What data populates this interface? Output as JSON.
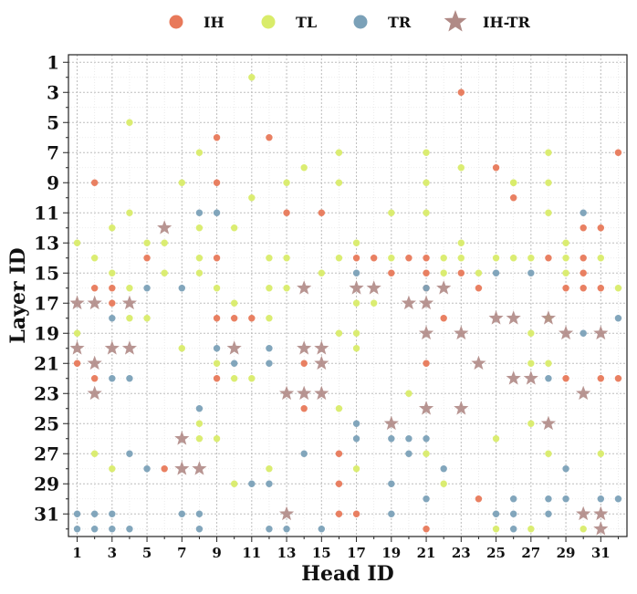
{
  "chart_data": {
    "type": "scatter",
    "xlabel": "Head ID",
    "ylabel": "Layer ID",
    "xlim": [
      0.5,
      32.5
    ],
    "ylim": [
      0.5,
      32.5
    ],
    "y_inverted": true,
    "x_ticks": [
      1,
      3,
      5,
      7,
      9,
      11,
      13,
      15,
      17,
      19,
      21,
      23,
      25,
      27,
      29,
      31
    ],
    "y_ticks": [
      1,
      3,
      5,
      7,
      9,
      11,
      13,
      15,
      17,
      19,
      21,
      23,
      25,
      27,
      29,
      31
    ],
    "grid": "on (dotted, minor and major)",
    "legend_position": "top, outside",
    "series": [
      {
        "name": "IH",
        "color": "#e8795a",
        "marker": "circle",
        "points": [
          [
            23,
            3
          ],
          [
            9,
            6
          ],
          [
            12,
            6
          ],
          [
            32,
            7
          ],
          [
            25,
            8
          ],
          [
            2,
            9
          ],
          [
            9,
            9
          ],
          [
            26,
            10
          ],
          [
            13,
            11
          ],
          [
            15,
            11
          ],
          [
            30,
            12
          ],
          [
            31,
            12
          ],
          [
            5,
            14
          ],
          [
            9,
            14
          ],
          [
            17,
            14
          ],
          [
            18,
            14
          ],
          [
            20,
            14
          ],
          [
            21,
            14
          ],
          [
            28,
            14
          ],
          [
            30,
            14
          ],
          [
            19,
            15
          ],
          [
            21,
            15
          ],
          [
            23,
            15
          ],
          [
            2,
            16
          ],
          [
            3,
            16
          ],
          [
            21,
            16
          ],
          [
            24,
            16
          ],
          [
            29,
            16
          ],
          [
            30,
            16
          ],
          [
            31,
            16
          ],
          [
            3,
            17
          ],
          [
            9,
            18
          ],
          [
            10,
            18
          ],
          [
            11,
            18
          ],
          [
            22,
            18
          ],
          [
            1,
            21
          ],
          [
            14,
            21
          ],
          [
            21,
            21
          ],
          [
            2,
            22
          ],
          [
            9,
            22
          ],
          [
            29,
            22
          ],
          [
            31,
            22
          ],
          [
            32,
            22
          ],
          [
            14,
            24
          ],
          [
            16,
            27
          ],
          [
            6,
            28
          ],
          [
            16,
            29
          ],
          [
            24,
            30
          ],
          [
            16,
            31
          ],
          [
            17,
            31
          ],
          [
            21,
            32
          ],
          [
            30,
            15
          ]
        ]
      },
      {
        "name": "TL",
        "color": "#d9ec6a",
        "marker": "circle",
        "points": [
          [
            11,
            2
          ],
          [
            4,
            5
          ],
          [
            8,
            7
          ],
          [
            16,
            7
          ],
          [
            21,
            7
          ],
          [
            28,
            7
          ],
          [
            14,
            8
          ],
          [
            23,
            8
          ],
          [
            7,
            9
          ],
          [
            13,
            9
          ],
          [
            16,
            9
          ],
          [
            21,
            9
          ],
          [
            26,
            9
          ],
          [
            28,
            9
          ],
          [
            11,
            10
          ],
          [
            4,
            11
          ],
          [
            19,
            11
          ],
          [
            21,
            11
          ],
          [
            28,
            11
          ],
          [
            3,
            12
          ],
          [
            8,
            12
          ],
          [
            10,
            12
          ],
          [
            1,
            13
          ],
          [
            5,
            13
          ],
          [
            6,
            13
          ],
          [
            17,
            13
          ],
          [
            23,
            13
          ],
          [
            29,
            13
          ],
          [
            2,
            14
          ],
          [
            8,
            14
          ],
          [
            12,
            14
          ],
          [
            13,
            14
          ],
          [
            16,
            14
          ],
          [
            19,
            14
          ],
          [
            22,
            14
          ],
          [
            23,
            14
          ],
          [
            25,
            14
          ],
          [
            26,
            14
          ],
          [
            27,
            14
          ],
          [
            29,
            14
          ],
          [
            31,
            14
          ],
          [
            3,
            15
          ],
          [
            6,
            15
          ],
          [
            8,
            15
          ],
          [
            15,
            15
          ],
          [
            22,
            15
          ],
          [
            24,
            15
          ],
          [
            29,
            15
          ],
          [
            4,
            16
          ],
          [
            9,
            16
          ],
          [
            12,
            16
          ],
          [
            13,
            16
          ],
          [
            32,
            16
          ],
          [
            10,
            17
          ],
          [
            17,
            17
          ],
          [
            18,
            17
          ],
          [
            4,
            18
          ],
          [
            5,
            18
          ],
          [
            12,
            18
          ],
          [
            28,
            18
          ],
          [
            1,
            19
          ],
          [
            16,
            19
          ],
          [
            17,
            19
          ],
          [
            27,
            19
          ],
          [
            7,
            20
          ],
          [
            17,
            20
          ],
          [
            9,
            21
          ],
          [
            27,
            21
          ],
          [
            28,
            21
          ],
          [
            10,
            22
          ],
          [
            11,
            22
          ],
          [
            20,
            23
          ],
          [
            16,
            24
          ],
          [
            8,
            25
          ],
          [
            27,
            25
          ],
          [
            9,
            26
          ],
          [
            25,
            26
          ],
          [
            2,
            27
          ],
          [
            21,
            27
          ],
          [
            28,
            27
          ],
          [
            31,
            27
          ],
          [
            3,
            28
          ],
          [
            12,
            28
          ],
          [
            17,
            28
          ],
          [
            10,
            29
          ],
          [
            22,
            29
          ],
          [
            25,
            32
          ],
          [
            27,
            32
          ],
          [
            30,
            32
          ],
          [
            26,
            9
          ],
          [
            8,
            26
          ]
        ]
      },
      {
        "name": "TR",
        "color": "#7ba1b8",
        "marker": "circle",
        "points": [
          [
            8,
            11
          ],
          [
            9,
            11
          ],
          [
            30,
            11
          ],
          [
            5,
            16
          ],
          [
            7,
            16
          ],
          [
            21,
            16
          ],
          [
            25,
            15
          ],
          [
            27,
            15
          ],
          [
            17,
            15
          ],
          [
            32,
            18
          ],
          [
            3,
            18
          ],
          [
            30,
            19
          ],
          [
            9,
            20
          ],
          [
            12,
            20
          ],
          [
            10,
            21
          ],
          [
            12,
            21
          ],
          [
            3,
            22
          ],
          [
            4,
            22
          ],
          [
            28,
            22
          ],
          [
            8,
            24
          ],
          [
            17,
            25
          ],
          [
            17,
            26
          ],
          [
            19,
            26
          ],
          [
            20,
            26
          ],
          [
            21,
            26
          ],
          [
            4,
            27
          ],
          [
            14,
            27
          ],
          [
            20,
            27
          ],
          [
            5,
            28
          ],
          [
            22,
            28
          ],
          [
            29,
            28
          ],
          [
            11,
            29
          ],
          [
            12,
            29
          ],
          [
            19,
            29
          ],
          [
            21,
            30
          ],
          [
            26,
            30
          ],
          [
            28,
            30
          ],
          [
            29,
            30
          ],
          [
            31,
            30
          ],
          [
            32,
            30
          ],
          [
            1,
            31
          ],
          [
            2,
            31
          ],
          [
            3,
            31
          ],
          [
            7,
            31
          ],
          [
            8,
            31
          ],
          [
            19,
            31
          ],
          [
            25,
            31
          ],
          [
            26,
            31
          ],
          [
            28,
            31
          ],
          [
            1,
            32
          ],
          [
            2,
            32
          ],
          [
            3,
            32
          ],
          [
            4,
            32
          ],
          [
            8,
            32
          ],
          [
            12,
            32
          ],
          [
            13,
            32
          ],
          [
            15,
            32
          ],
          [
            26,
            32
          ]
        ]
      },
      {
        "name": "IH-TR",
        "color": "#b08a86",
        "marker": "star",
        "points": [
          [
            6,
            12
          ],
          [
            14,
            16
          ],
          [
            17,
            16
          ],
          [
            18,
            16
          ],
          [
            22,
            16
          ],
          [
            1,
            17
          ],
          [
            2,
            17
          ],
          [
            4,
            17
          ],
          [
            20,
            17
          ],
          [
            21,
            17
          ],
          [
            25,
            18
          ],
          [
            26,
            18
          ],
          [
            28,
            18
          ],
          [
            21,
            19
          ],
          [
            23,
            19
          ],
          [
            29,
            19
          ],
          [
            31,
            19
          ],
          [
            1,
            20
          ],
          [
            3,
            20
          ],
          [
            4,
            20
          ],
          [
            10,
            20
          ],
          [
            14,
            20
          ],
          [
            15,
            20
          ],
          [
            2,
            21
          ],
          [
            15,
            21
          ],
          [
            24,
            21
          ],
          [
            26,
            22
          ],
          [
            27,
            22
          ],
          [
            2,
            23
          ],
          [
            13,
            23
          ],
          [
            14,
            23
          ],
          [
            15,
            23
          ],
          [
            30,
            23
          ],
          [
            21,
            24
          ],
          [
            23,
            24
          ],
          [
            19,
            25
          ],
          [
            28,
            25
          ],
          [
            7,
            26
          ],
          [
            7,
            28
          ],
          [
            8,
            28
          ],
          [
            13,
            31
          ],
          [
            30,
            31
          ],
          [
            31,
            31
          ],
          [
            31,
            32
          ]
        ]
      }
    ]
  }
}
